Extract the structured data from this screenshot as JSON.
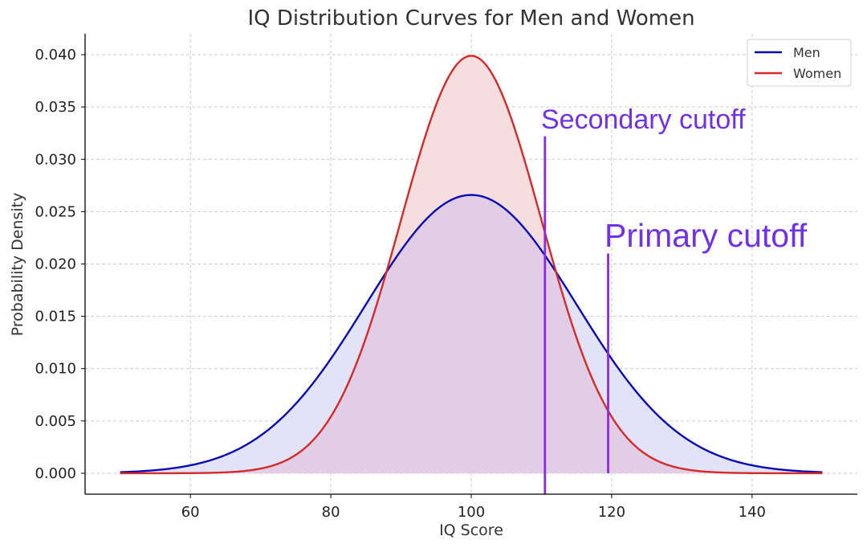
{
  "chart_data": {
    "type": "line",
    "title": "IQ Distribution Curves for Men and Women",
    "xlabel": "IQ Score",
    "ylabel": "Probability Density",
    "xlim": [
      45,
      155
    ],
    "ylim": [
      -0.002,
      0.042
    ],
    "x_ticks": [
      60,
      80,
      100,
      120,
      140
    ],
    "x_tick_labels": [
      "60",
      "80",
      "100",
      "120",
      "140"
    ],
    "y_ticks": [
      0.0,
      0.005,
      0.01,
      0.015,
      0.02,
      0.025,
      0.03,
      0.035,
      0.04
    ],
    "y_tick_labels": [
      "0.000",
      "0.005",
      "0.010",
      "0.015",
      "0.020",
      "0.025",
      "0.030",
      "0.035",
      "0.040"
    ],
    "x_range": [
      50,
      150
    ],
    "grid": true,
    "legend_position": "top-right",
    "series": [
      {
        "name": "Men",
        "distribution": "normal",
        "mean": 100,
        "sd": 15,
        "color": "#0a0ab4",
        "fill": "#e3e3f8"
      },
      {
        "name": "Women",
        "distribution": "normal",
        "mean": 100,
        "sd": 10,
        "color": "#d42a2a",
        "fill": "#f7dede"
      }
    ],
    "overlap_fill": "#e2cde6",
    "annotations": [
      {
        "text": "Secondary cutoff",
        "x": 110.5,
        "y_from": -0.002,
        "y_to": 0.0322,
        "color": "#8a2be2"
      },
      {
        "text": "Primary cutoff",
        "x": 119.5,
        "y_from": 0.0,
        "y_to": 0.021,
        "color": "#8a2be2"
      }
    ]
  }
}
